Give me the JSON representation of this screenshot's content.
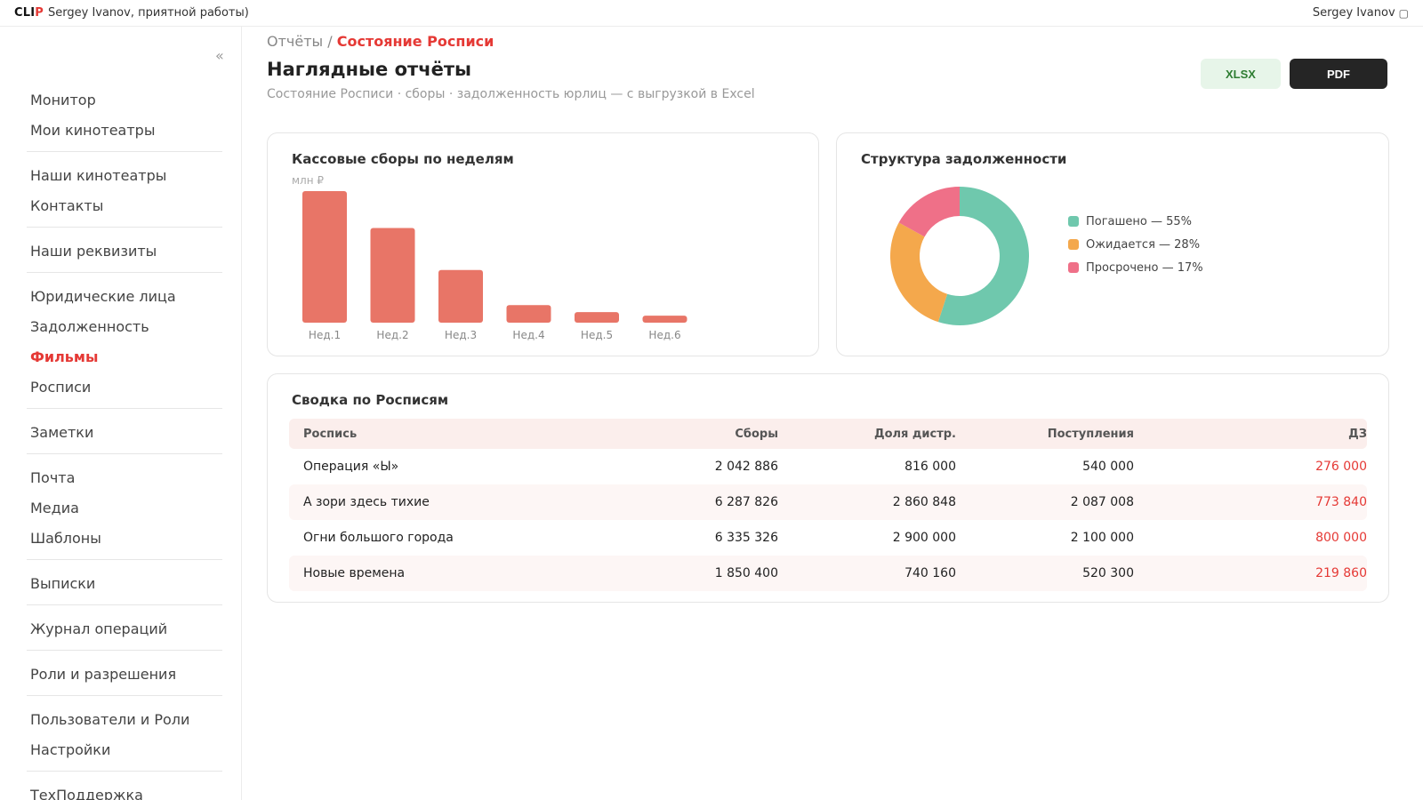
{
  "topbar": {
    "logo_a": "CLI",
    "logo_b": "P",
    "greeting": "Sergey Ivanov, приятной работы)",
    "user_name": "Sergey Ivanov",
    "user_icon": "user-icon"
  },
  "sidebar": {
    "collapse_label": "«",
    "groups": [
      [
        "Монитор",
        "Мои кинотеатры"
      ],
      [
        "Наши кинотеатры",
        "Контакты"
      ],
      [
        "Наши реквизиты"
      ],
      [
        "Юридические лица",
        "Задолженность",
        "Фильмы",
        "Росписи"
      ],
      [
        "Заметки"
      ],
      [
        "Почта",
        "Медиа",
        "Шаблоны"
      ],
      [
        "Выписки"
      ],
      [
        "Журнал операций"
      ],
      [
        "Роли и разрешения"
      ],
      [
        "Пользователи и Роли",
        "Настройки"
      ],
      [
        "ТехПоддержка"
      ]
    ],
    "active_item": "Фильмы"
  },
  "header": {
    "breadcrumb_parent": "Отчёты",
    "breadcrumb_sep": " / ",
    "breadcrumb_current": "Состояние Росписи",
    "title": "Наглядные отчёты",
    "subtitle": "Состояние Росписи · сборы · задолженность юрлиц — с выгрузкой в Excel",
    "xlsx_label": "XLSX",
    "pdf_label": "PDF"
  },
  "colors": {
    "accent": "#e53935",
    "bar": "#e87567",
    "paid": "#6fc8ad",
    "pending": "#f4a84c",
    "overdue": "#ef7088"
  },
  "chart_data": [
    {
      "type": "bar",
      "title": "Кассовые сборы по неделям",
      "ylabel": "млн ₽",
      "categories": [
        "Нед.1",
        "Нед.2",
        "Нед.3",
        "Нед.4",
        "Нед.5",
        "Нед.6"
      ],
      "values": [
        7.5,
        5.4,
        3.0,
        1.0,
        0.6,
        0.4
      ],
      "ylim": [
        0,
        7.5
      ],
      "grid": false
    },
    {
      "type": "pie",
      "title": "Структура задолженности",
      "categories": [
        "Погашено",
        "Ожидается",
        "Просрочено"
      ],
      "values": [
        55,
        28,
        17
      ],
      "legend_labels": [
        "Погашено — 55%",
        "Ожидается — 28%",
        "Просрочено — 17%"
      ],
      "legend": "right"
    }
  ],
  "summary": {
    "title": "Сводка по Росписям",
    "columns": [
      "Роспись",
      "Сборы",
      "Доля дистр.",
      "Поступления",
      "ДЗ"
    ],
    "rows": [
      [
        "Операция «Ы»",
        "2 042 886",
        "816 000",
        "540 000",
        "276 000"
      ],
      [
        "А зори здесь тихие",
        "6 287 826",
        "2 860 848",
        "2 087 008",
        "773 840"
      ],
      [
        "Огни большого города",
        "6 335 326",
        "2 900 000",
        "2 100 000",
        "800 000"
      ],
      [
        "Новые времена",
        "1 850 400",
        "740 160",
        "520 300",
        "219 860"
      ]
    ]
  }
}
